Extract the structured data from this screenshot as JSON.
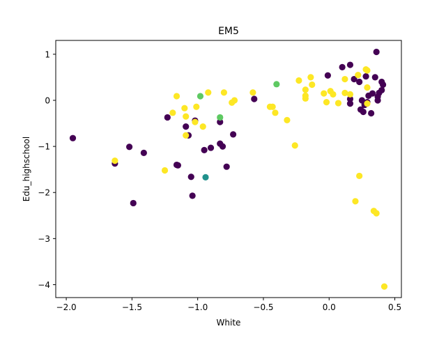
{
  "chart_data": {
    "type": "scatter",
    "title": "EM5",
    "xlabel": "White",
    "ylabel": "Edu_highschool",
    "xlim": [
      -2.08,
      0.55
    ],
    "ylim": [
      -4.28,
      1.3
    ],
    "x_ticks": [
      -2.0,
      -1.5,
      -1.0,
      -0.5,
      0.0,
      0.5
    ],
    "x_tick_labels": [
      "−2.0",
      "−1.5",
      "−1.0",
      "−0.5",
      "0.0",
      "0.5"
    ],
    "y_ticks": [
      1,
      0,
      -1,
      -2,
      -3,
      -4
    ],
    "y_tick_labels": [
      "1",
      "0",
      "−1",
      "−2",
      "−3",
      "−4"
    ],
    "grid": false,
    "legend": false,
    "colors": {
      "purple": "#440154",
      "teal": "#21918c",
      "green": "#5ec962",
      "yellow": "#fde725"
    },
    "points": [
      {
        "x": -1.95,
        "y": -0.82,
        "c": "purple"
      },
      {
        "x": -1.63,
        "y": -1.37,
        "c": "purple"
      },
      {
        "x": -1.52,
        "y": -1.01,
        "c": "purple"
      },
      {
        "x": -1.49,
        "y": -2.23,
        "c": "purple"
      },
      {
        "x": -1.41,
        "y": -1.14,
        "c": "purple"
      },
      {
        "x": -1.23,
        "y": -0.37,
        "c": "purple"
      },
      {
        "x": -1.16,
        "y": -1.4,
        "c": "purple"
      },
      {
        "x": -1.15,
        "y": -1.41,
        "c": "purple"
      },
      {
        "x": -1.09,
        "y": -0.57,
        "c": "purple"
      },
      {
        "x": -1.07,
        "y": -0.76,
        "c": "purple"
      },
      {
        "x": -1.05,
        "y": -1.66,
        "c": "purple"
      },
      {
        "x": -1.04,
        "y": -2.07,
        "c": "purple"
      },
      {
        "x": -1.02,
        "y": -0.44,
        "c": "purple"
      },
      {
        "x": -0.95,
        "y": -1.08,
        "c": "purple"
      },
      {
        "x": -0.9,
        "y": -1.03,
        "c": "purple"
      },
      {
        "x": -0.83,
        "y": -0.47,
        "c": "purple"
      },
      {
        "x": -0.83,
        "y": -0.94,
        "c": "purple"
      },
      {
        "x": -0.81,
        "y": -1.0,
        "c": "purple"
      },
      {
        "x": -0.78,
        "y": -1.44,
        "c": "purple"
      },
      {
        "x": -0.73,
        "y": -0.74,
        "c": "purple"
      },
      {
        "x": -0.57,
        "y": 0.03,
        "c": "purple"
      },
      {
        "x": -0.01,
        "y": 0.54,
        "c": "purple"
      },
      {
        "x": 0.1,
        "y": 0.72,
        "c": "purple"
      },
      {
        "x": 0.16,
        "y": 0.77,
        "c": "purple"
      },
      {
        "x": 0.16,
        "y": -0.07,
        "c": "purple"
      },
      {
        "x": 0.16,
        "y": 0.03,
        "c": "purple"
      },
      {
        "x": 0.19,
        "y": 0.46,
        "c": "purple"
      },
      {
        "x": 0.23,
        "y": 0.4,
        "c": "purple"
      },
      {
        "x": 0.24,
        "y": -0.2,
        "c": "purple"
      },
      {
        "x": 0.25,
        "y": 0.0,
        "c": "purple"
      },
      {
        "x": 0.26,
        "y": -0.25,
        "c": "purple"
      },
      {
        "x": 0.27,
        "y": -0.1,
        "c": "purple"
      },
      {
        "x": 0.28,
        "y": 0.52,
        "c": "purple"
      },
      {
        "x": 0.29,
        "y": -0.04,
        "c": "purple"
      },
      {
        "x": 0.3,
        "y": 0.1,
        "c": "purple"
      },
      {
        "x": 0.32,
        "y": -0.28,
        "c": "purple"
      },
      {
        "x": 0.33,
        "y": 0.15,
        "c": "purple"
      },
      {
        "x": 0.35,
        "y": 0.5,
        "c": "purple"
      },
      {
        "x": 0.36,
        "y": 1.05,
        "c": "purple"
      },
      {
        "x": 0.37,
        "y": 0.08,
        "c": "purple"
      },
      {
        "x": 0.38,
        "y": 0.16,
        "c": "purple"
      },
      {
        "x": 0.4,
        "y": 0.4,
        "c": "purple"
      },
      {
        "x": 0.41,
        "y": 0.34,
        "c": "purple"
      },
      {
        "x": 0.4,
        "y": 0.22,
        "c": "purple"
      },
      {
        "x": 0.37,
        "y": 0.0,
        "c": "purple"
      },
      {
        "x": -0.94,
        "y": -1.67,
        "c": "teal"
      },
      {
        "x": -0.98,
        "y": 0.09,
        "c": "green"
      },
      {
        "x": -0.83,
        "y": -0.37,
        "c": "green"
      },
      {
        "x": -0.4,
        "y": 0.35,
        "c": "green"
      },
      {
        "x": -1.63,
        "y": -1.31,
        "c": "yellow"
      },
      {
        "x": -1.25,
        "y": -1.52,
        "c": "yellow"
      },
      {
        "x": -1.19,
        "y": -0.27,
        "c": "yellow"
      },
      {
        "x": -1.16,
        "y": 0.09,
        "c": "yellow"
      },
      {
        "x": -1.1,
        "y": -0.17,
        "c": "yellow"
      },
      {
        "x": -1.09,
        "y": -0.35,
        "c": "yellow"
      },
      {
        "x": -1.09,
        "y": -0.76,
        "c": "yellow"
      },
      {
        "x": -1.02,
        "y": -0.47,
        "c": "yellow"
      },
      {
        "x": -1.01,
        "y": -0.14,
        "c": "yellow"
      },
      {
        "x": -0.96,
        "y": -0.57,
        "c": "yellow"
      },
      {
        "x": -0.92,
        "y": 0.17,
        "c": "yellow"
      },
      {
        "x": -0.8,
        "y": 0.17,
        "c": "yellow"
      },
      {
        "x": -0.74,
        "y": -0.05,
        "c": "yellow"
      },
      {
        "x": -0.72,
        "y": 0.0,
        "c": "yellow"
      },
      {
        "x": -0.58,
        "y": 0.17,
        "c": "yellow"
      },
      {
        "x": -0.45,
        "y": -0.14,
        "c": "yellow"
      },
      {
        "x": -0.43,
        "y": -0.14,
        "c": "yellow"
      },
      {
        "x": -0.41,
        "y": -0.27,
        "c": "yellow"
      },
      {
        "x": -0.32,
        "y": -0.43,
        "c": "yellow"
      },
      {
        "x": -0.26,
        "y": -0.98,
        "c": "yellow"
      },
      {
        "x": -0.23,
        "y": 0.43,
        "c": "yellow"
      },
      {
        "x": -0.18,
        "y": 0.23,
        "c": "yellow"
      },
      {
        "x": -0.18,
        "y": 0.1,
        "c": "yellow"
      },
      {
        "x": -0.18,
        "y": 0.04,
        "c": "yellow"
      },
      {
        "x": -0.14,
        "y": 0.5,
        "c": "yellow"
      },
      {
        "x": -0.13,
        "y": 0.34,
        "c": "yellow"
      },
      {
        "x": -0.04,
        "y": 0.15,
        "c": "yellow"
      },
      {
        "x": -0.02,
        "y": -0.04,
        "c": "yellow"
      },
      {
        "x": 0.01,
        "y": 0.2,
        "c": "yellow"
      },
      {
        "x": 0.03,
        "y": 0.13,
        "c": "yellow"
      },
      {
        "x": 0.07,
        "y": -0.06,
        "c": "yellow"
      },
      {
        "x": 0.12,
        "y": 0.16,
        "c": "yellow"
      },
      {
        "x": 0.12,
        "y": 0.46,
        "c": "yellow"
      },
      {
        "x": 0.16,
        "y": 0.13,
        "c": "yellow"
      },
      {
        "x": 0.2,
        "y": -2.19,
        "c": "yellow"
      },
      {
        "x": 0.22,
        "y": 0.55,
        "c": "yellow"
      },
      {
        "x": 0.23,
        "y": -1.64,
        "c": "yellow"
      },
      {
        "x": 0.28,
        "y": 0.67,
        "c": "yellow"
      },
      {
        "x": 0.29,
        "y": 0.65,
        "c": "yellow"
      },
      {
        "x": 0.29,
        "y": 0.28,
        "c": "yellow"
      },
      {
        "x": 0.29,
        "y": -0.07,
        "c": "yellow"
      },
      {
        "x": 0.34,
        "y": -2.4,
        "c": "yellow"
      },
      {
        "x": 0.36,
        "y": -2.45,
        "c": "yellow"
      },
      {
        "x": 0.42,
        "y": -4.04,
        "c": "yellow"
      }
    ]
  }
}
